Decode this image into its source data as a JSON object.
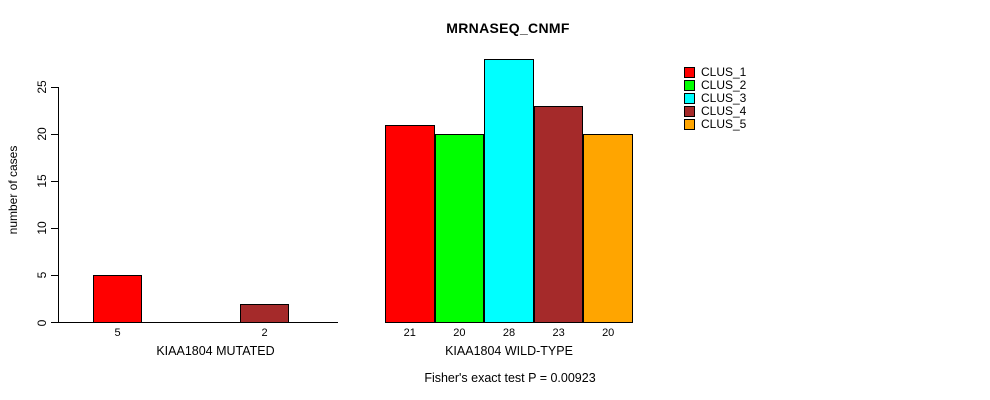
{
  "chart_data": {
    "type": "bar",
    "title": "MRNASEQ_CNMF",
    "ylabel": "number of cases",
    "xlabel": "",
    "yticks": [
      0,
      5,
      10,
      15,
      20,
      25
    ],
    "axis_range": [
      0,
      25
    ],
    "grid": false,
    "legend_position": "right",
    "clusters": [
      {
        "name": "CLUS_1",
        "color": "#ff0000"
      },
      {
        "name": "CLUS_2",
        "color": "#00ff00"
      },
      {
        "name": "CLUS_3",
        "color": "#00ffff"
      },
      {
        "name": "CLUS_4",
        "color": "#a52a2a"
      },
      {
        "name": "CLUS_5",
        "color": "#ffa500"
      }
    ],
    "groups": [
      {
        "label": "KIAA1804 MUTATED",
        "slots": 5,
        "bars": [
          {
            "cluster": "CLUS_1",
            "value": 5,
            "slot": 0
          },
          {
            "cluster": "CLUS_4",
            "value": 2,
            "slot": 3
          }
        ]
      },
      {
        "label": "KIAA1804 WILD-TYPE",
        "slots": 5,
        "bars": [
          {
            "cluster": "CLUS_1",
            "value": 21,
            "slot": 0
          },
          {
            "cluster": "CLUS_2",
            "value": 20,
            "slot": 1
          },
          {
            "cluster": "CLUS_3",
            "value": 28,
            "slot": 2
          },
          {
            "cluster": "CLUS_4",
            "value": 23,
            "slot": 3
          },
          {
            "cluster": "CLUS_5",
            "value": 20,
            "slot": 4
          }
        ]
      }
    ],
    "annotation": "Fisher's exact test P = 0.00923"
  }
}
